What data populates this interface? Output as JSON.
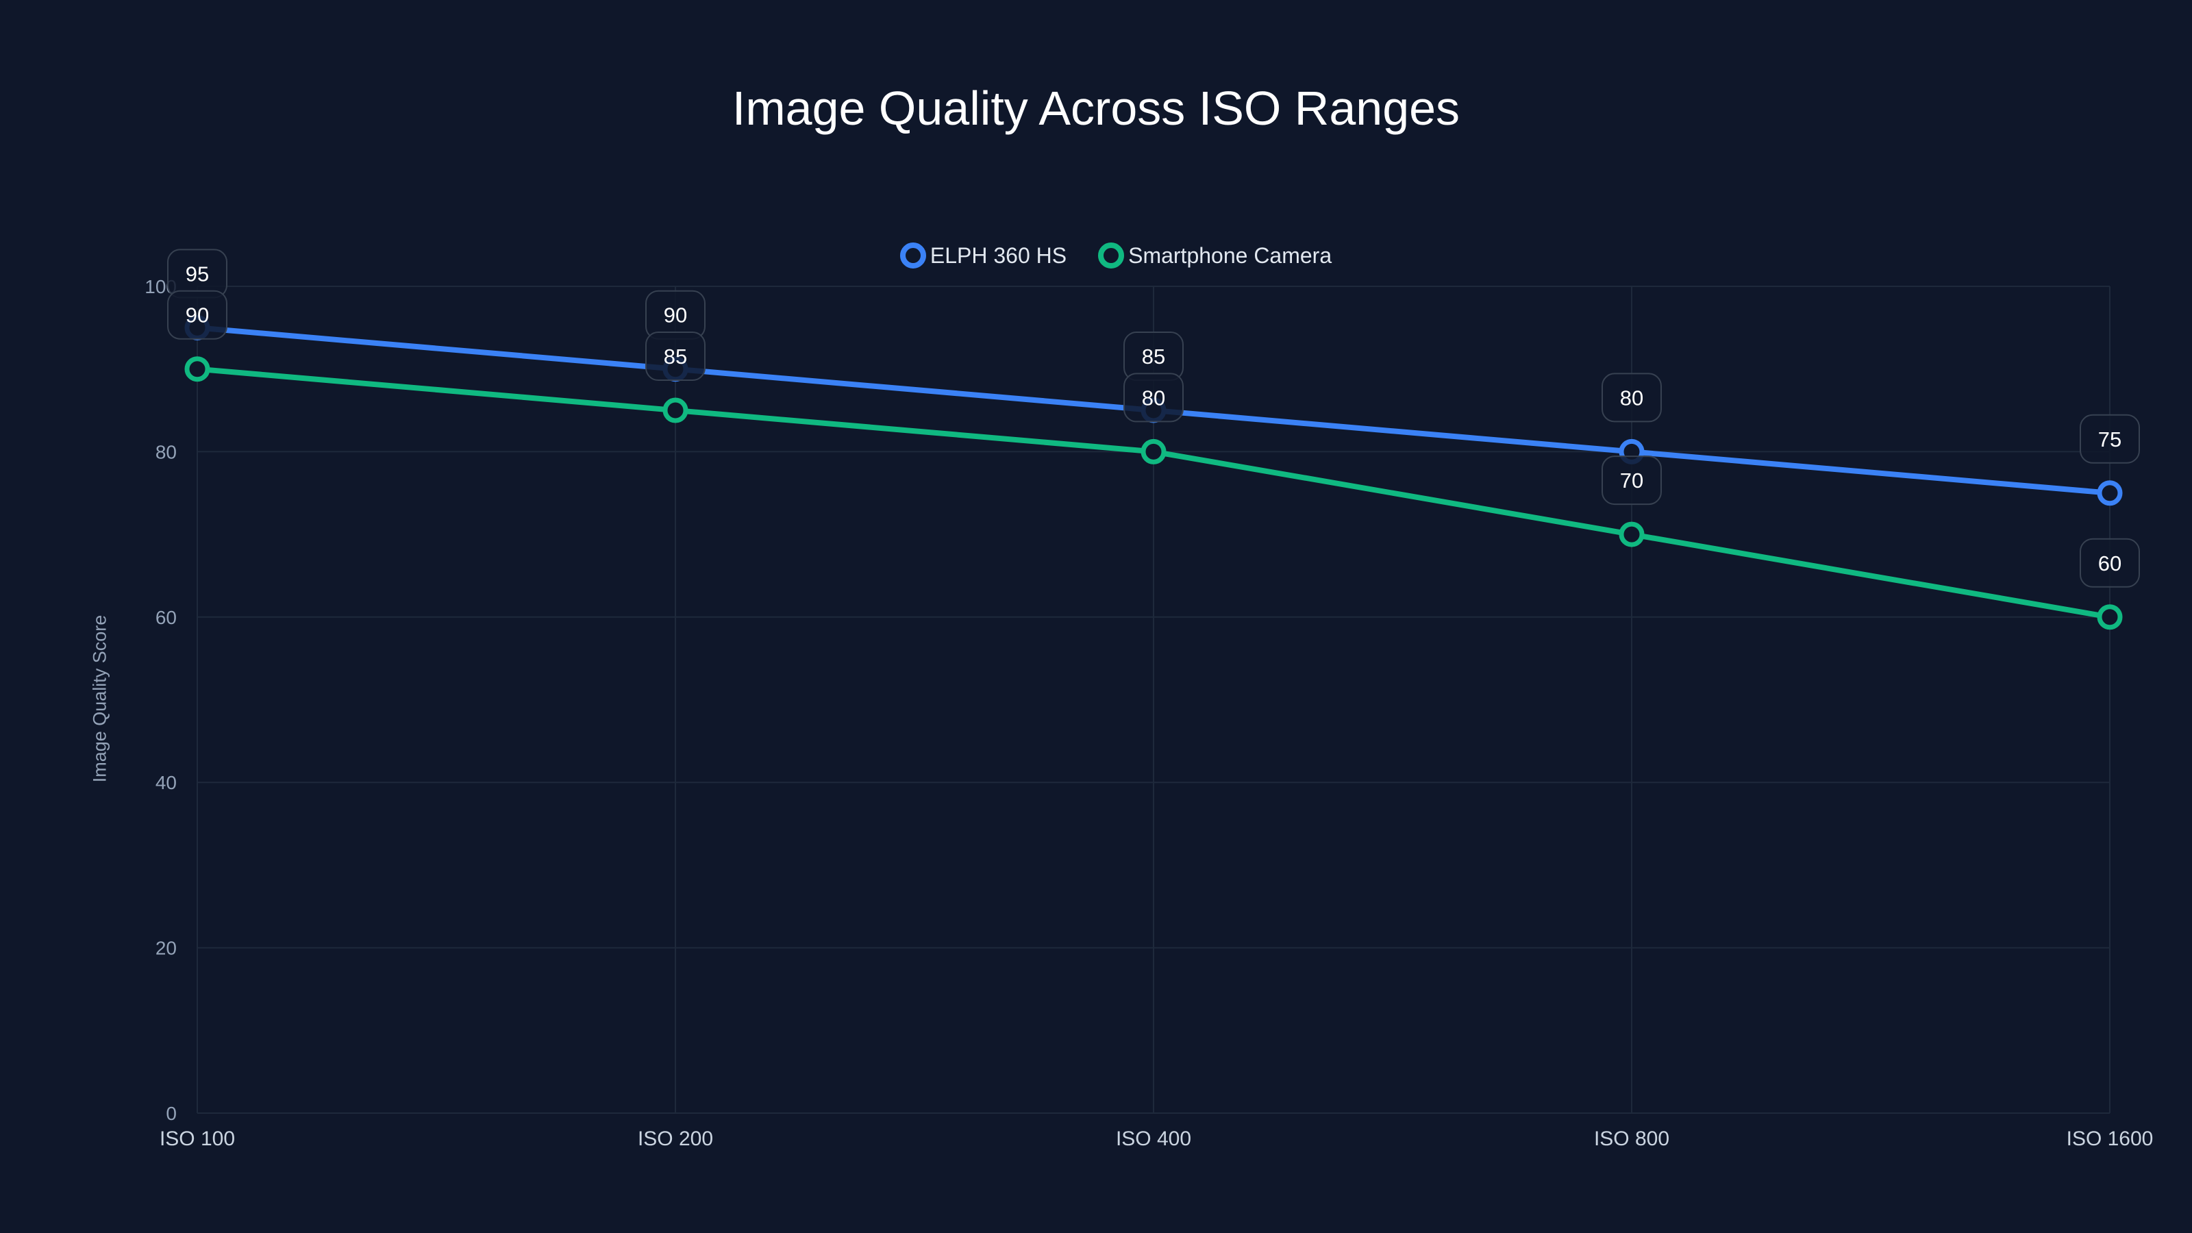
{
  "title": "Image Quality Across ISO Ranges",
  "legend": [
    {
      "label": "ELPH 360 HS",
      "color": "#3b82f6"
    },
    {
      "label": "Smartphone Camera",
      "color": "#10b981"
    }
  ],
  "axes": {
    "y_title": "Image Quality Score",
    "y_ticks": [
      "0",
      "20",
      "40",
      "60",
      "80",
      "100"
    ],
    "x_ticks": [
      "ISO 100",
      "ISO 200",
      "ISO 400",
      "ISO 800",
      "ISO 1600"
    ]
  },
  "colors": {
    "background": "#0f172a",
    "grid": "#1e293b",
    "series_1": "#3b82f6",
    "series_2": "#10b981",
    "label_border": "#374151"
  },
  "chart_data": {
    "type": "line",
    "title": "Image Quality Across ISO Ranges",
    "xlabel": "",
    "ylabel": "Image Quality Score",
    "categories": [
      "ISO 100",
      "ISO 200",
      "ISO 400",
      "ISO 800",
      "ISO 1600"
    ],
    "series": [
      {
        "name": "ELPH 360 HS",
        "color": "#3b82f6",
        "values": [
          95,
          90,
          85,
          80,
          75
        ]
      },
      {
        "name": "Smartphone Camera",
        "color": "#10b981",
        "values": [
          90,
          85,
          80,
          70,
          60
        ]
      }
    ],
    "ylim": [
      0,
      100
    ],
    "yticks": [
      0,
      20,
      40,
      60,
      80,
      100
    ],
    "grid": true,
    "legend_position": "top-center",
    "data_labels": true
  }
}
